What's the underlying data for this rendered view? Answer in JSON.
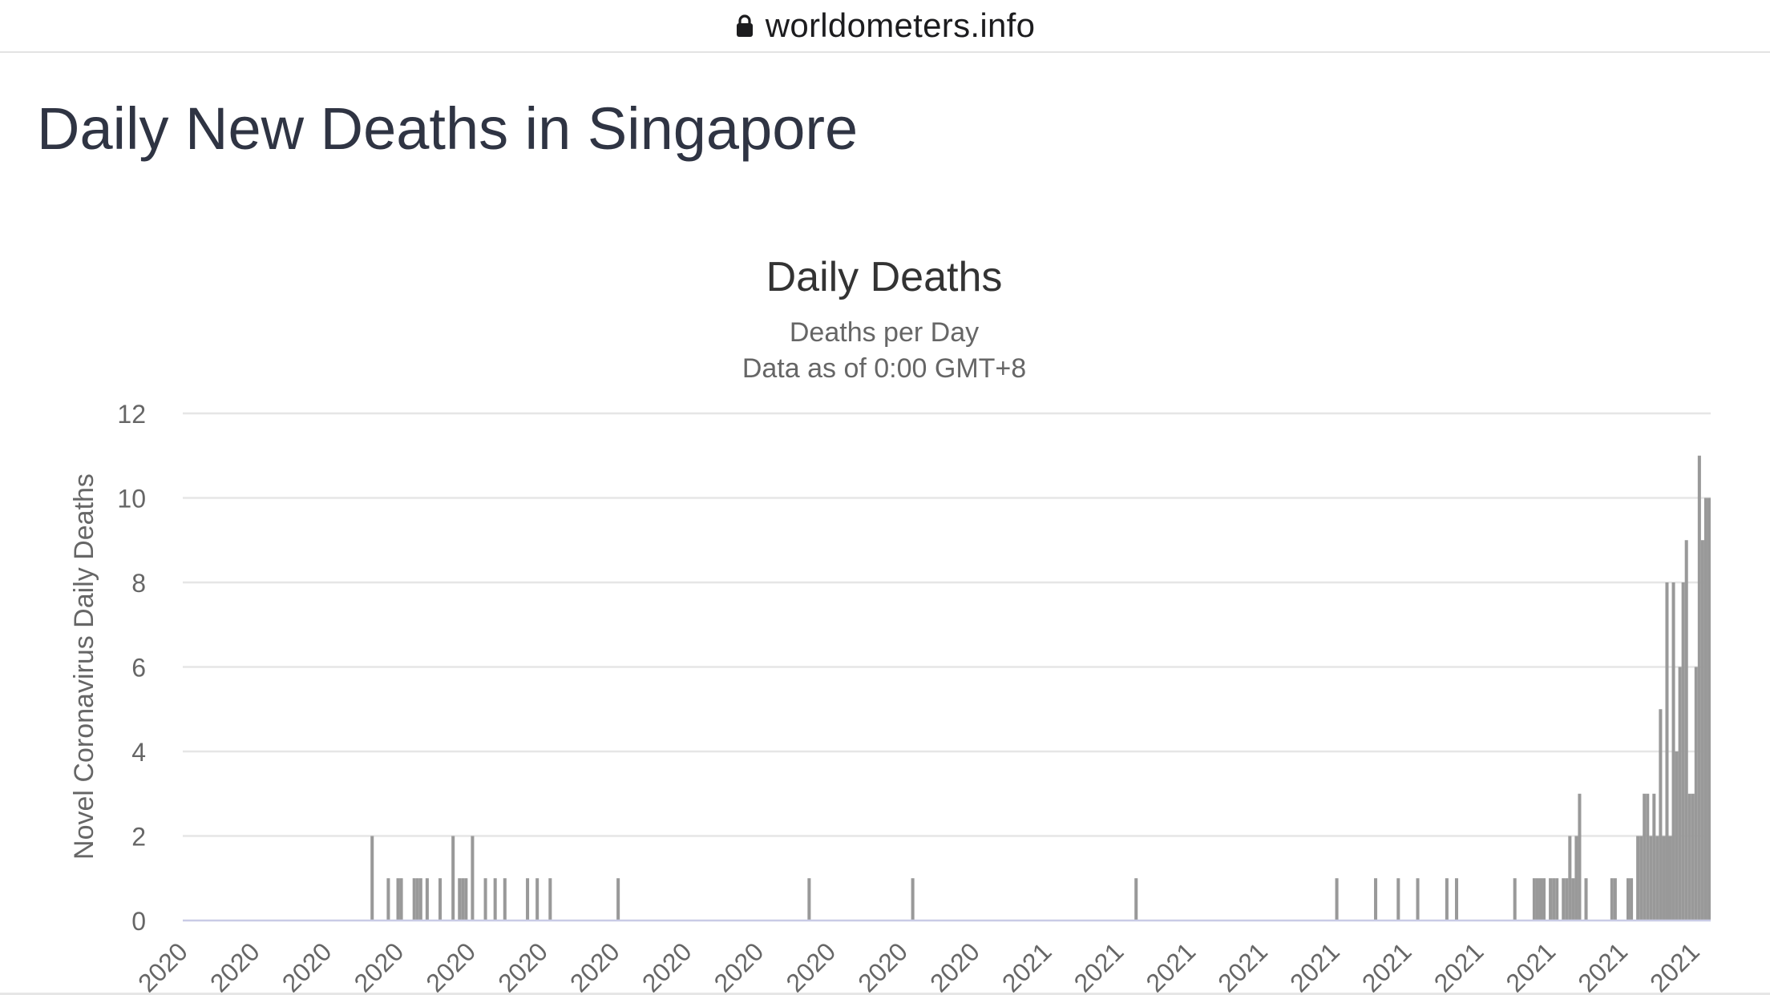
{
  "browser": {
    "url": "worldometers.info",
    "lock_icon": "lock-icon"
  },
  "page": {
    "title": "Daily New Deaths in Singapore"
  },
  "chart_data": {
    "type": "bar",
    "title": "Daily Deaths",
    "subtitle_lines": [
      "Deaths per Day",
      "Data as of 0:00 GMT+8"
    ],
    "ylabel": "Novel Coronavirus Daily Deaths",
    "xlabel": "",
    "ylim": [
      0,
      12
    ],
    "yticks": [
      0,
      2,
      4,
      6,
      8,
      10,
      12
    ],
    "xticks": [
      "2020",
      "2020",
      "2020",
      "2020",
      "2020",
      "2020",
      "2020",
      "2020",
      "2020",
      "2020",
      "2020",
      "2020",
      "2021",
      "2021",
      "2021",
      "2021",
      "2021",
      "2021",
      "2021",
      "2021",
      "2021",
      "2021"
    ],
    "x": [
      "2020-03-21",
      "2020-03-26",
      "2020-03-29",
      "2020-03-30",
      "2020-04-03",
      "2020-04-04",
      "2020-04-05",
      "2020-04-07",
      "2020-04-11",
      "2020-04-15",
      "2020-04-17",
      "2020-04-18",
      "2020-04-19",
      "2020-04-21",
      "2020-04-25",
      "2020-04-28",
      "2020-05-01",
      "2020-05-08",
      "2020-05-11",
      "2020-05-15",
      "2020-06-05",
      "2020-08-03",
      "2020-09-04",
      "2020-11-12",
      "2021-01-13",
      "2021-01-25",
      "2021-02-01",
      "2021-02-07",
      "2021-02-16",
      "2021-02-19",
      "2021-03-09",
      "2021-03-15",
      "2021-03-16",
      "2021-03-17",
      "2021-03-18",
      "2021-03-20",
      "2021-03-21",
      "2021-03-22",
      "2021-03-24",
      "2021-03-25",
      "2021-03-26",
      "2021-03-27",
      "2021-03-28",
      "2021-03-29",
      "2021-03-31",
      "2021-04-08",
      "2021-04-09",
      "2021-04-13",
      "2021-04-14",
      "2021-04-16",
      "2021-04-17",
      "2021-04-18",
      "2021-04-19",
      "2021-04-20",
      "2021-04-21",
      "2021-04-22",
      "2021-04-23",
      "2021-04-24",
      "2021-04-25",
      "2021-04-26",
      "2021-04-27",
      "2021-04-28",
      "2021-04-29",
      "2021-04-30",
      "2021-05-01",
      "2021-05-02",
      "2021-05-03",
      "2021-05-04",
      "2021-05-05",
      "2021-05-06",
      "2021-05-07",
      "2021-05-08"
    ],
    "values": [
      2,
      1,
      1,
      1,
      1,
      1,
      1,
      1,
      1,
      2,
      1,
      1,
      1,
      2,
      1,
      1,
      1,
      1,
      1,
      1,
      1,
      1,
      1,
      1,
      1,
      1,
      1,
      1,
      1,
      1,
      1,
      1,
      1,
      1,
      1,
      1,
      1,
      1,
      1,
      1,
      2,
      1,
      2,
      3,
      1,
      1,
      1,
      1,
      1,
      2,
      2,
      3,
      3,
      2,
      3,
      2,
      5,
      2,
      8,
      2,
      8,
      4,
      6,
      8,
      9,
      3,
      3,
      6,
      11,
      9,
      10,
      10
    ]
  }
}
